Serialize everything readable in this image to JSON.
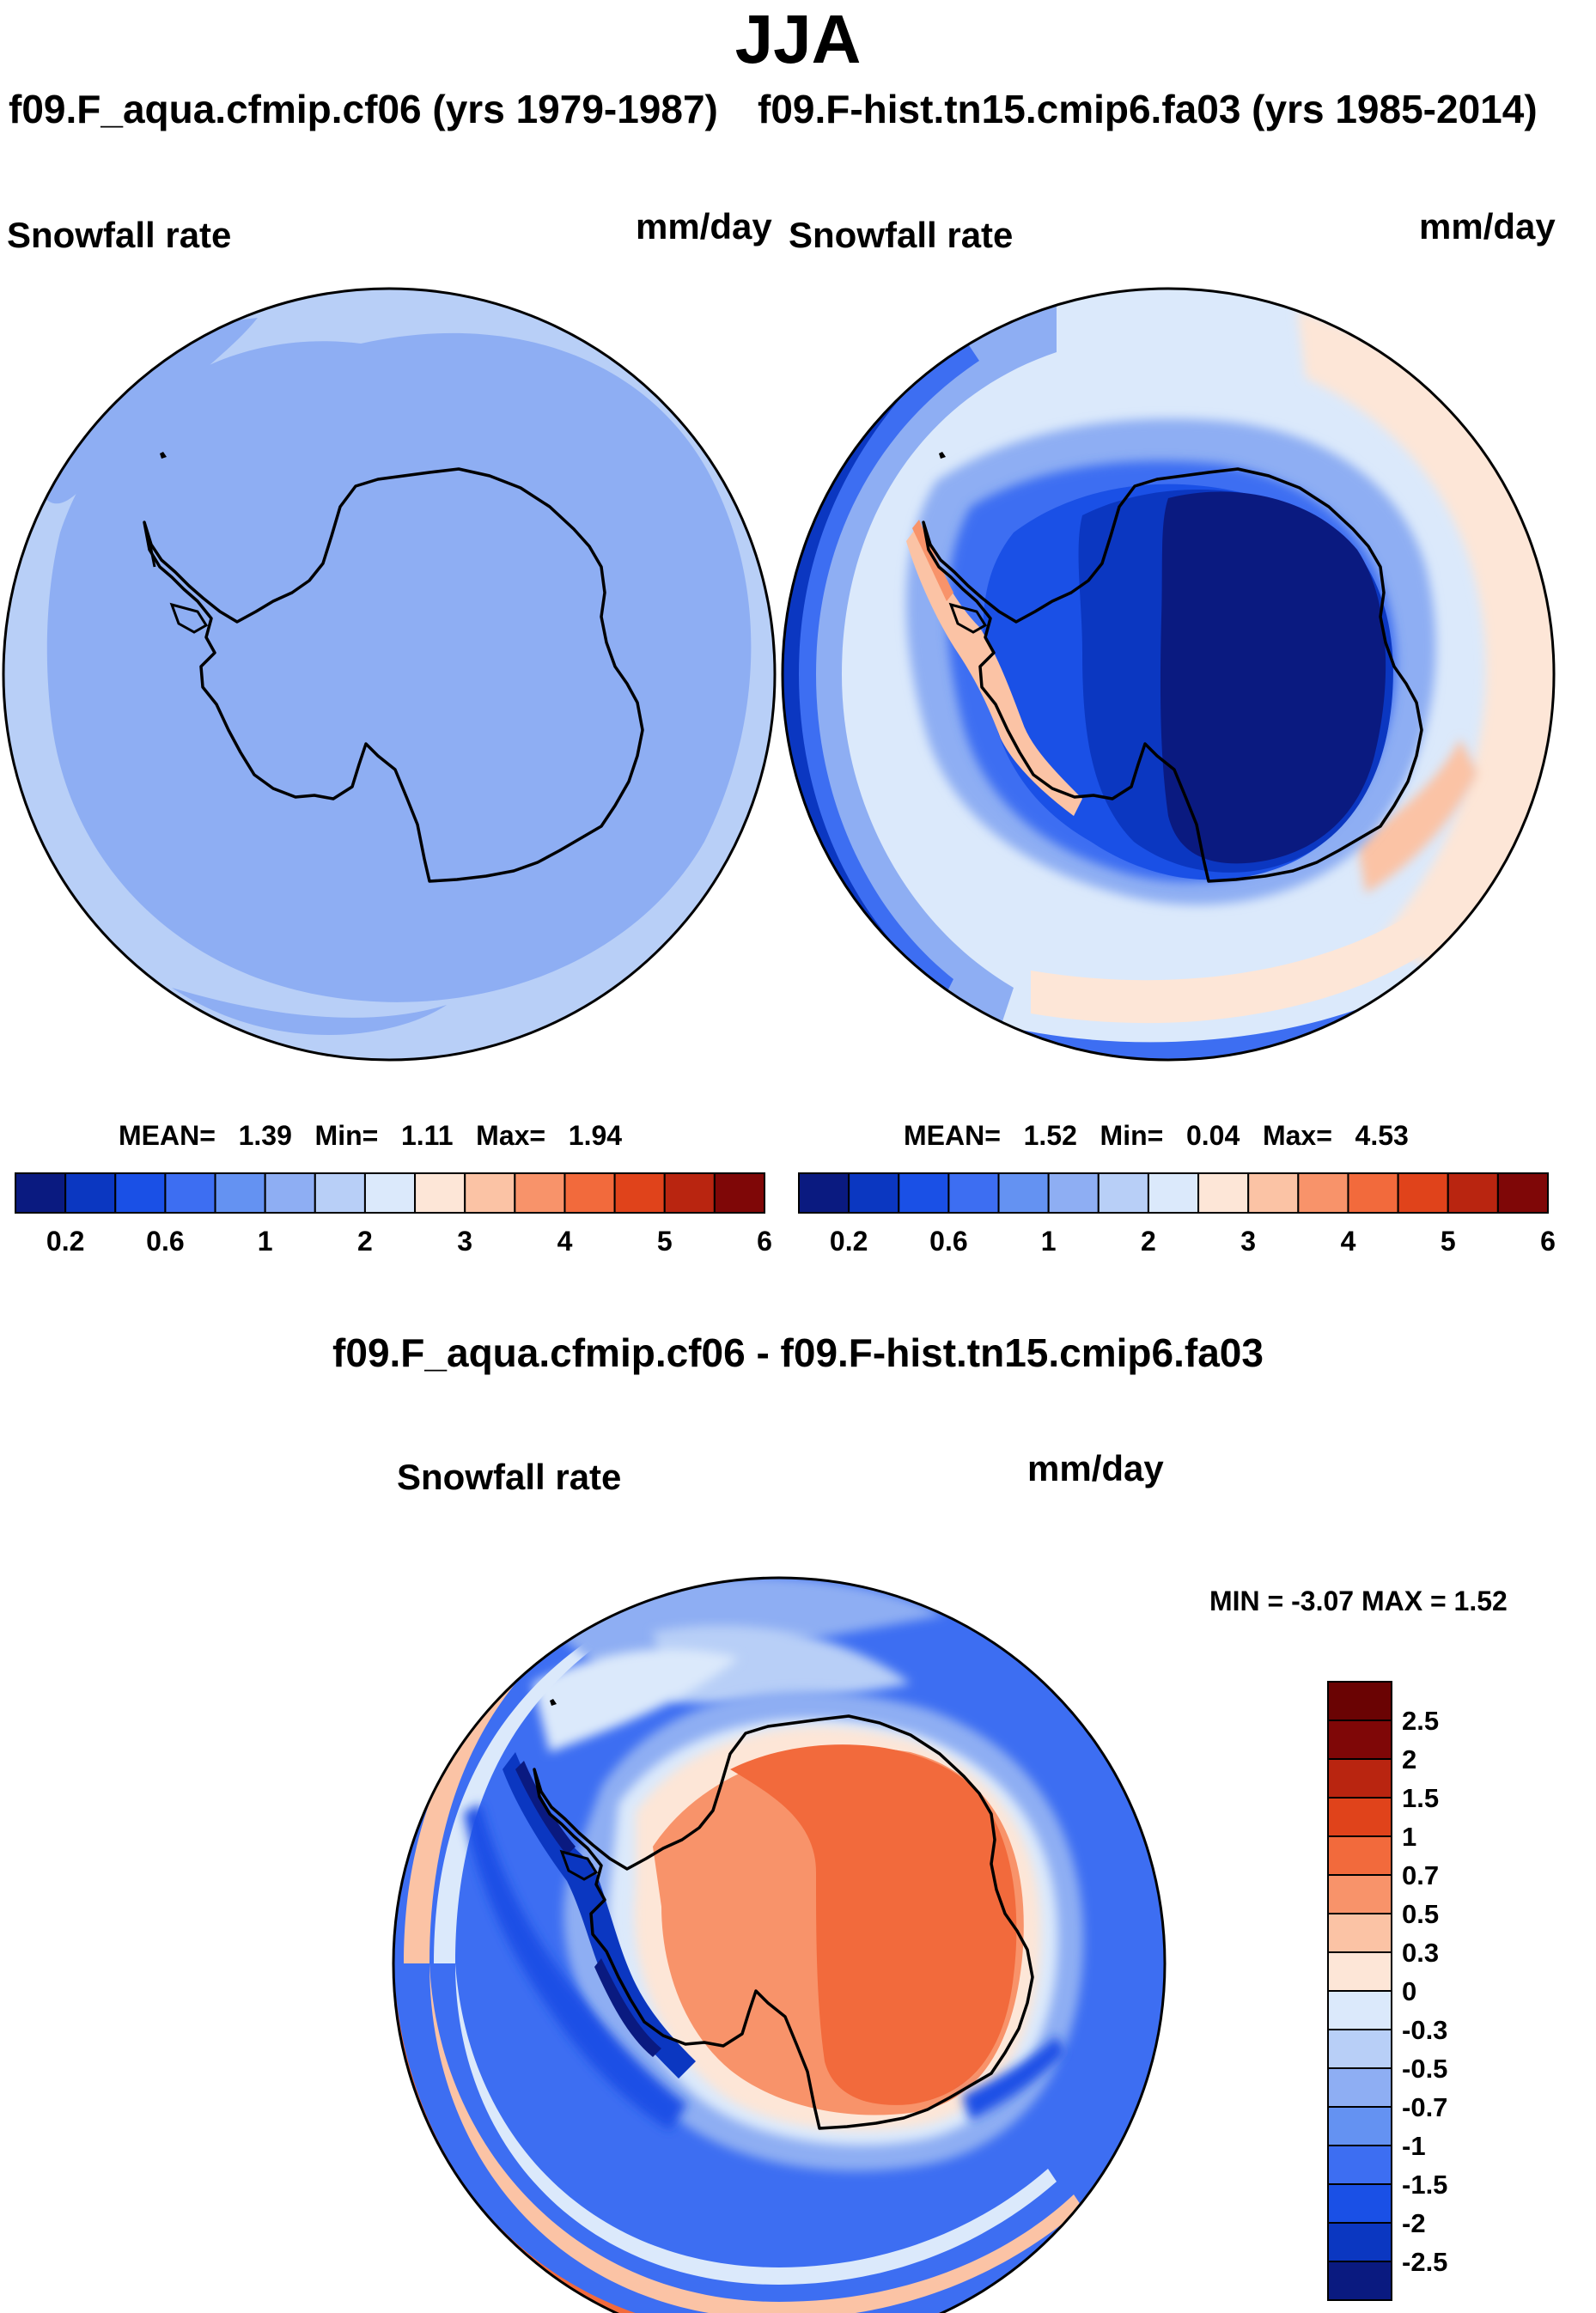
{
  "title": "JJA",
  "panels": {
    "left": {
      "case_title": "f09.F_aqua.cfmip.cf06 (yrs 1979-1987)",
      "variable": "Snowfall rate",
      "units": "mm/day",
      "stats": {
        "mean_label": "MEAN=",
        "mean": "1.39",
        "min_label": "Min=",
        "min": "1.11",
        "max_label": "Max=",
        "max": "1.94"
      }
    },
    "right": {
      "case_title": "f09.F-hist.tn15.cmip6.fa03 (yrs 1985-2014)",
      "variable": "Snowfall rate",
      "units": "mm/day",
      "stats": {
        "mean_label": "MEAN=",
        "mean": "1.52",
        "min_label": "Min=",
        "min": "0.04",
        "max_label": "Max=",
        "max": "4.53"
      }
    },
    "diff": {
      "title": "f09.F_aqua.cfmip.cf06 - f09.F-hist.tn15.cmip6.fa03",
      "variable": "Snowfall rate",
      "units": "mm/day",
      "minmax": "MIN =  -3.07 MAX =   1.52"
    }
  },
  "chart_data": [
    {
      "type": "heatmap",
      "projection": "south-polar-stereographic",
      "panel": "left",
      "title": "f09.F_aqua.cfmip.cf06 (yrs 1979-1987)",
      "variable": "Snowfall rate",
      "units": "mm/day",
      "mean": 1.39,
      "min": 1.11,
      "max": 1.94,
      "colorbar": {
        "orientation": "horizontal",
        "levels": [
          0.2,
          0.4,
          0.6,
          0.8,
          1,
          1.5,
          2,
          2.5,
          3,
          3.5,
          4,
          4.5,
          5,
          5.5,
          6
        ],
        "tick_labels": [
          "0.2",
          "0.6",
          "1",
          "2",
          "3",
          "4",
          "5",
          "6"
        ],
        "colors": [
          "#0a1a80",
          "#0b37c1",
          "#1a50e6",
          "#3d6ef2",
          "#6492f2",
          "#8eaef3",
          "#b8cff7",
          "#dbe9fb",
          "#fde6d7",
          "#fbc3a5",
          "#f8936a",
          "#f26a3c",
          "#e0431b",
          "#b92510",
          "#7f0707"
        ]
      }
    },
    {
      "type": "heatmap",
      "projection": "south-polar-stereographic",
      "panel": "right",
      "title": "f09.F-hist.tn15.cmip6.fa03 (yrs 1985-2014)",
      "variable": "Snowfall rate",
      "units": "mm/day",
      "mean": 1.52,
      "min": 0.04,
      "max": 4.53,
      "colorbar": {
        "orientation": "horizontal",
        "levels": [
          0.2,
          0.4,
          0.6,
          0.8,
          1,
          1.5,
          2,
          2.5,
          3,
          3.5,
          4,
          4.5,
          5,
          5.5,
          6
        ],
        "tick_labels": [
          "0.2",
          "0.6",
          "1",
          "2",
          "3",
          "4",
          "5",
          "6"
        ],
        "colors": [
          "#0a1a80",
          "#0b37c1",
          "#1a50e6",
          "#3d6ef2",
          "#6492f2",
          "#8eaef3",
          "#b8cff7",
          "#dbe9fb",
          "#fde6d7",
          "#fbc3a5",
          "#f8936a",
          "#f26a3c",
          "#e0431b",
          "#b92510",
          "#7f0707"
        ]
      }
    },
    {
      "type": "heatmap",
      "projection": "south-polar-stereographic",
      "panel": "difference",
      "title": "f09.F_aqua.cfmip.cf06 - f09.F-hist.tn15.cmip6.fa03",
      "variable": "Snowfall rate",
      "units": "mm/day",
      "min": -3.07,
      "max": 1.52,
      "colorbar": {
        "orientation": "vertical",
        "levels": [
          -2.5,
          -2,
          -1.5,
          -1,
          -0.7,
          -0.5,
          -0.3,
          0,
          0.3,
          0.5,
          0.7,
          1,
          1.5,
          2,
          2.5
        ],
        "tick_labels": [
          "-2.5",
          "-2",
          "-1.5",
          "-1",
          "-0.7",
          "-0.5",
          "-0.3",
          "0",
          "0.3",
          "0.5",
          "0.7",
          "1",
          "1.5",
          "2",
          "2.5"
        ],
        "colors": [
          "#0a1a80",
          "#0b37c1",
          "#1a50e6",
          "#3d6ef2",
          "#6492f2",
          "#8eaef3",
          "#b8cff7",
          "#dbe9fb",
          "#fde6d7",
          "#fbc3a5",
          "#f8936a",
          "#f26a3c",
          "#e0431b",
          "#b92510",
          "#7f0707",
          "#6a0303"
        ]
      }
    }
  ]
}
